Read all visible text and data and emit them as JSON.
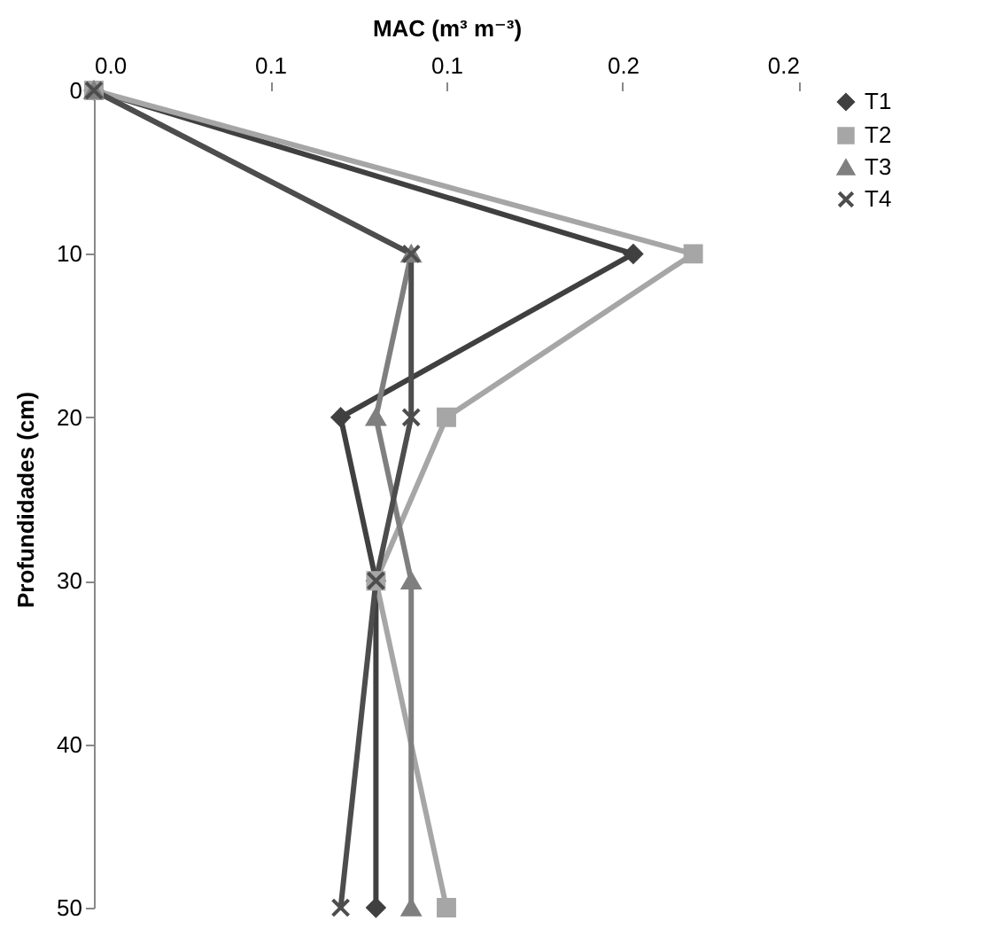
{
  "chart_data": {
    "type": "line",
    "xlabel": "MAC (m³ m⁻³)",
    "ylabel": "Profundidades (cm)",
    "xlim": [
      0,
      0.2
    ],
    "xticks": [
      {
        "value": 0,
        "label": "0.0"
      },
      {
        "value": 0.05,
        "label": "0.1"
      },
      {
        "value": 0.1,
        "label": "0.1"
      },
      {
        "value": 0.15,
        "label": "0.2"
      },
      {
        "value": 0.2,
        "label": "0.2"
      }
    ],
    "ylim": [
      50,
      0
    ],
    "yticks": [
      0,
      10,
      20,
      30,
      40,
      50
    ],
    "grid": false,
    "legend": "right",
    "series": [
      {
        "name": "T1",
        "color": "#404040",
        "marker": "diamond",
        "x": [
          0,
          0.153,
          0.07,
          0.08,
          0.08
        ],
        "values": [
          0,
          10,
          20,
          30,
          50
        ]
      },
      {
        "name": "T2",
        "color": "#a6a6a6",
        "marker": "square",
        "x": [
          0,
          0.17,
          0.1,
          0.08,
          0.1
        ],
        "values": [
          0,
          10,
          20,
          30,
          50
        ]
      },
      {
        "name": "T3",
        "color": "#7f7f7f",
        "marker": "triangle",
        "x": [
          0,
          0.09,
          0.08,
          0.09,
          0.09
        ],
        "values": [
          0,
          10,
          20,
          30,
          50
        ]
      },
      {
        "name": "T4",
        "color": "#4d4d4d",
        "marker": "cross",
        "x": [
          0,
          0.09,
          0.09,
          0.08,
          0.07
        ],
        "values": [
          0,
          10,
          20,
          30,
          50
        ]
      }
    ]
  }
}
